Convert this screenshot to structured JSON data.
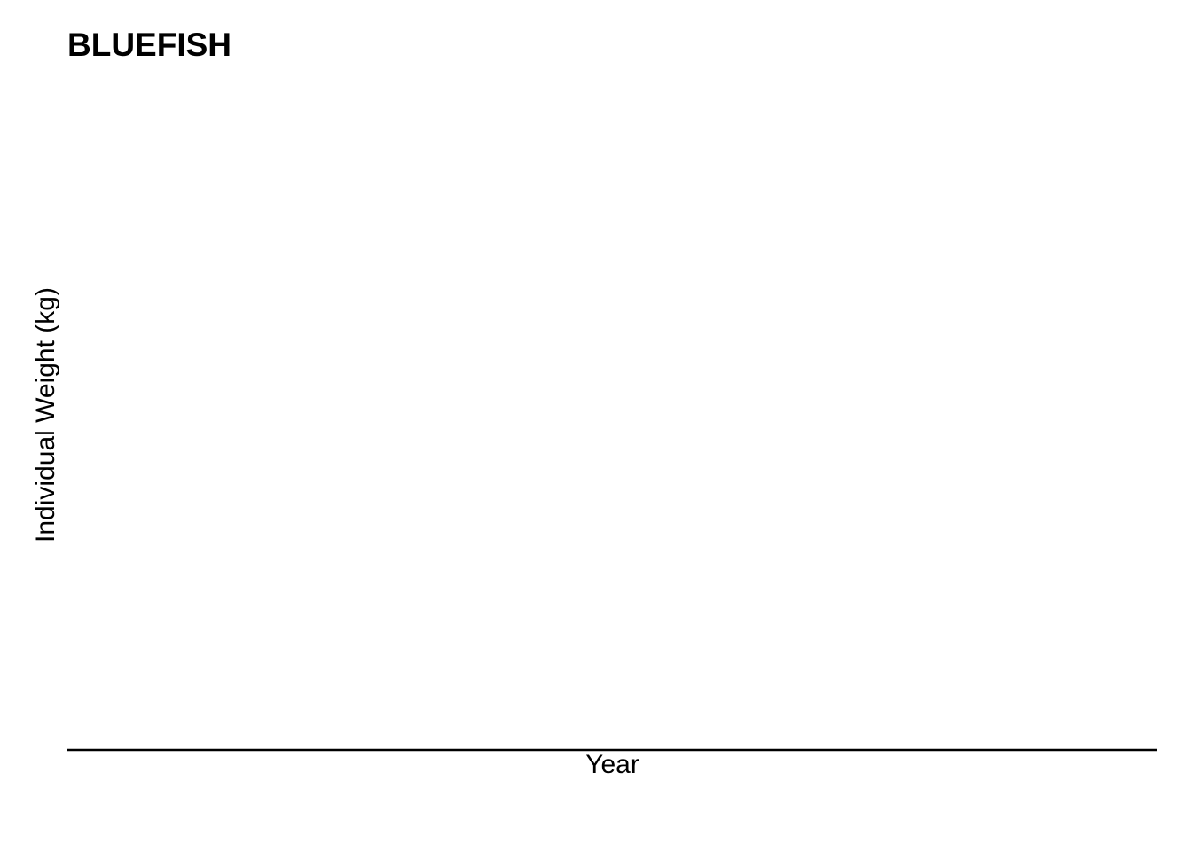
{
  "chart_data": {
    "type": "line",
    "title": "BLUEFISH",
    "xlabel": "Year",
    "ylabel": "Individual Weight (kg)",
    "series": [],
    "grid": false,
    "legend": "none"
  }
}
